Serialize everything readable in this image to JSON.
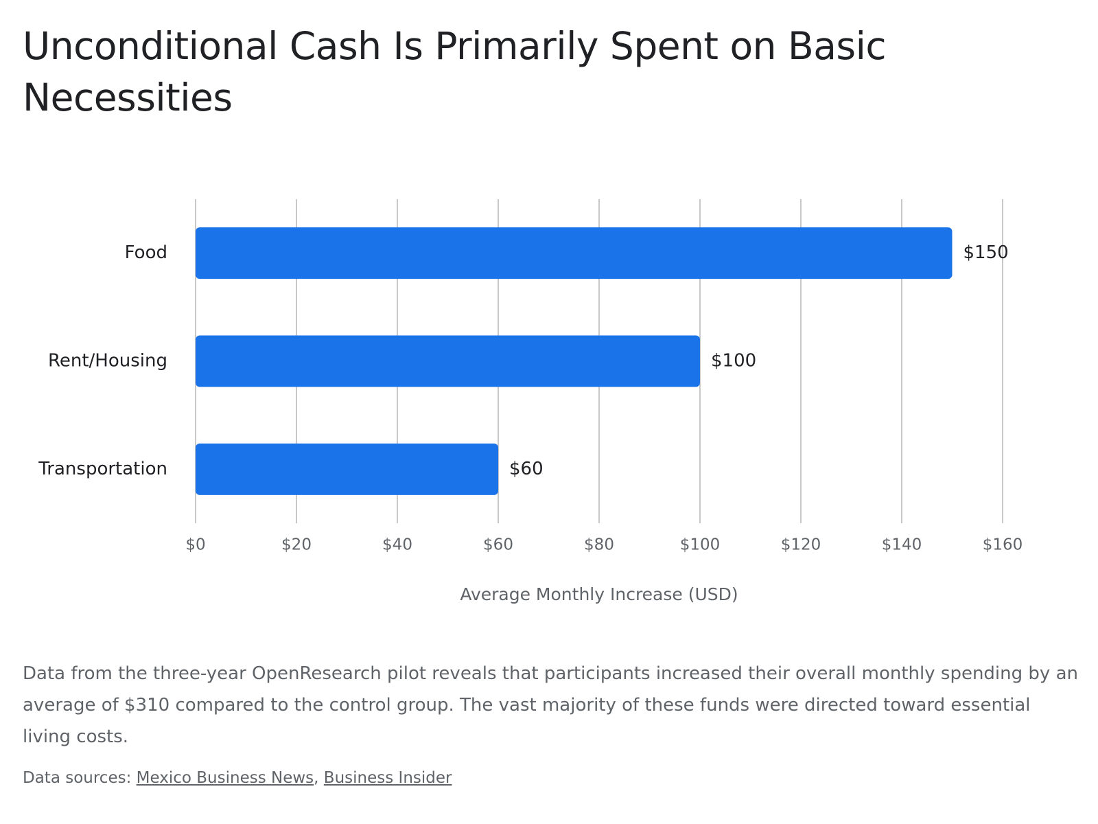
{
  "chart_data": {
    "type": "bar",
    "orientation": "horizontal",
    "title": "Unconditional Cash Is Primarily Spent on Basic Necessities",
    "categories": [
      "Food",
      "Rent/Housing",
      "Transportation"
    ],
    "values": [
      150,
      100,
      60
    ],
    "value_labels": [
      "$150",
      "$100",
      "$60"
    ],
    "color": "#1a73e8",
    "xlim": [
      0,
      160
    ],
    "xticks": [
      {
        "value": 0,
        "label": "$0"
      },
      {
        "value": 20,
        "label": "$20"
      },
      {
        "value": 40,
        "label": "$40"
      },
      {
        "value": 60,
        "label": "$60"
      },
      {
        "value": 80,
        "label": "$80"
      },
      {
        "value": 100,
        "label": "$100"
      },
      {
        "value": 120,
        "label": "$120"
      },
      {
        "value": 140,
        "label": "$140"
      },
      {
        "value": 160,
        "label": "$160"
      }
    ],
    "xlabel": "Average Monthly Increase (USD)",
    "grid": true
  },
  "description": "Data from the three-year OpenResearch pilot reveals that participants increased their overall monthly spending by an average of $310 compared to the control group. The vast majority of these funds were directed toward essential living costs.",
  "sources": {
    "label": "Data sources:",
    "separator": ",",
    "links": [
      "Mexico Business News",
      "Business Insider"
    ]
  }
}
